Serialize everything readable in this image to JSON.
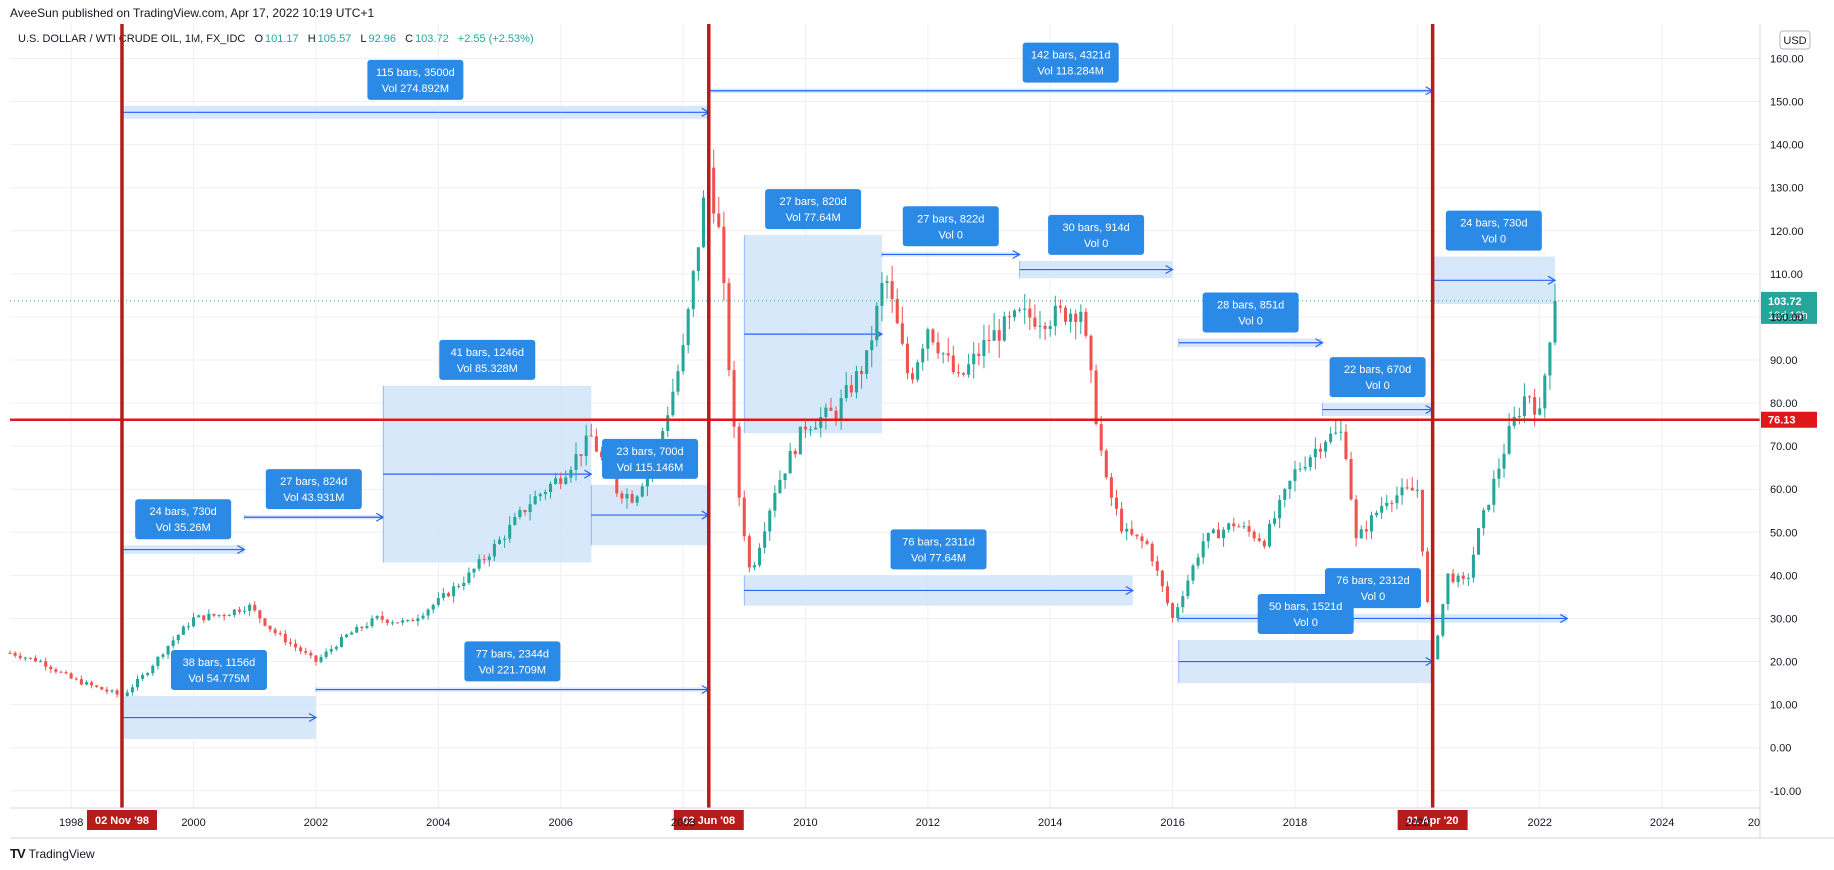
{
  "header": {
    "publisher": "AveeSun published on TradingView.com, Apr 17, 2022 10:19 UTC+1"
  },
  "symbol": {
    "name": "U.S. DOLLAR / WTI CRUDE OIL, 1M, FX_IDC",
    "open_label": "O",
    "open": "101.17",
    "high_label": "H",
    "high": "105.57",
    "low_label": "L",
    "low": "92.96",
    "close_label": "C",
    "close": "103.72",
    "change": "+2.55 (+2.53%)"
  },
  "footer": {
    "logo_mark": "TV",
    "logo_text": "TradingView"
  },
  "colors": {
    "up": "#26a69a",
    "down": "#ef5350",
    "measure_blue": "#2962ff",
    "measure_fill": "#cfe4f9",
    "label_blue": "#2b8ae6",
    "red_line": "#e0161b",
    "dark_red": "#b71c1c",
    "grid": "#eef0f3",
    "price_tag": "#26a69a"
  },
  "chart_data": {
    "type": "candlestick",
    "x_axis": {
      "range": [
        1997.0,
        2025.6
      ],
      "ticks": [
        "1998",
        "2000",
        "2002",
        "2004",
        "2006",
        "2008",
        "2010",
        "2012",
        "2014",
        "2016",
        "2018",
        "2020",
        "2022",
        "2024",
        "20"
      ]
    },
    "y_axis": {
      "range": [
        -14,
        168
      ],
      "ticks": [
        "160.00",
        "150.00",
        "140.00",
        "130.00",
        "120.00",
        "110.00",
        "100.00",
        "90.00",
        "80.00",
        "70.00",
        "60.00",
        "50.00",
        "40.00",
        "30.00",
        "20.00",
        "10.00",
        "0.00",
        "-10.00"
      ],
      "tick_values": [
        160,
        150,
        140,
        130,
        120,
        110,
        100,
        90,
        80,
        70,
        60,
        50,
        40,
        30,
        20,
        10,
        0,
        -10
      ]
    },
    "currency_label": "USD",
    "last_price": {
      "value": 103.72,
      "label": "103.72",
      "countdown": "12d 13h"
    },
    "horizontal_line": {
      "value": 76.13,
      "label": "76.13"
    },
    "vertical_lines": [
      {
        "x": 1998.83,
        "label": "02 Nov '98"
      },
      {
        "x": 2008.42,
        "label": "02 Jun '08"
      },
      {
        "x": 2020.25,
        "label": "01 Apr '20"
      }
    ],
    "price_path": [
      [
        1997.0,
        22
      ],
      [
        1997.5,
        20
      ],
      [
        1998.0,
        16
      ],
      [
        1998.4,
        14
      ],
      [
        1998.83,
        12
      ],
      [
        1999.2,
        17
      ],
      [
        1999.6,
        24
      ],
      [
        2000.0,
        30
      ],
      [
        2000.5,
        31
      ],
      [
        2000.9,
        33
      ],
      [
        2001.3,
        27
      ],
      [
        2001.8,
        22
      ],
      [
        2002.0,
        20
      ],
      [
        2002.5,
        26
      ],
      [
        2003.0,
        30
      ],
      [
        2003.5,
        29
      ],
      [
        2004.0,
        34
      ],
      [
        2004.5,
        40
      ],
      [
        2005.0,
        48
      ],
      [
        2005.5,
        57
      ],
      [
        2006.0,
        63
      ],
      [
        2006.5,
        72
      ],
      [
        2006.9,
        60
      ],
      [
        2007.2,
        58
      ],
      [
        2007.6,
        70
      ],
      [
        2008.0,
        92
      ],
      [
        2008.42,
        135
      ],
      [
        2008.6,
        118
      ],
      [
        2008.9,
        60
      ],
      [
        2009.1,
        40
      ],
      [
        2009.5,
        60
      ],
      [
        2010.0,
        75
      ],
      [
        2010.5,
        78
      ],
      [
        2011.0,
        90
      ],
      [
        2011.3,
        110
      ],
      [
        2011.7,
        85
      ],
      [
        2012.0,
        98
      ],
      [
        2012.5,
        85
      ],
      [
        2013.0,
        95
      ],
      [
        2013.5,
        100
      ],
      [
        2014.0,
        100
      ],
      [
        2014.5,
        102
      ],
      [
        2014.9,
        62
      ],
      [
        2015.2,
        50
      ],
      [
        2015.6,
        47
      ],
      [
        2016.0,
        30
      ],
      [
        2016.5,
        48
      ],
      [
        2017.0,
        52
      ],
      [
        2017.5,
        48
      ],
      [
        2018.0,
        64
      ],
      [
        2018.5,
        72
      ],
      [
        2018.8,
        73
      ],
      [
        2019.0,
        48
      ],
      [
        2019.5,
        58
      ],
      [
        2020.0,
        60
      ],
      [
        2020.25,
        20
      ],
      [
        2020.5,
        40
      ],
      [
        2020.8,
        38
      ],
      [
        2021.0,
        50
      ],
      [
        2021.5,
        73
      ],
      [
        2021.8,
        83
      ],
      [
        2022.0,
        77
      ],
      [
        2022.2,
        100
      ],
      [
        2022.3,
        103.72
      ]
    ]
  },
  "measurements": [
    {
      "x1": 1998.83,
      "x2": 2008.42,
      "y1": 146,
      "y2": 149,
      "bars": "115 bars, 3500d",
      "vol": "Vol 274.892M"
    },
    {
      "x1": 2008.42,
      "x2": 2020.25,
      "y1": 152,
      "y2": 153,
      "bars": "142 bars, 4321d",
      "vol": "Vol 118.284M"
    },
    {
      "x1": 1998.83,
      "x2": 2000.83,
      "y1": 45,
      "y2": 47,
      "bars": "24 bars, 730d",
      "vol": "Vol 35.26M"
    },
    {
      "x1": 1998.83,
      "x2": 2002.0,
      "y1": 2,
      "y2": 12,
      "bars": "38 bars, 1156d",
      "vol": "Vol 54.775M"
    },
    {
      "x1": 2000.83,
      "x2": 2003.1,
      "y1": 53,
      "y2": 54,
      "bars": "27 bars, 824d",
      "vol": "Vol 43.931M"
    },
    {
      "x1": 2002.0,
      "x2": 2008.42,
      "y1": 13,
      "y2": 14,
      "bars": "77 bars, 2344d",
      "vol": "Vol 221.709M"
    },
    {
      "x1": 2003.1,
      "x2": 2006.5,
      "y1": 43,
      "y2": 84,
      "bars": "41 bars, 1246d",
      "vol": "Vol 85.328M"
    },
    {
      "x1": 2006.5,
      "x2": 2008.42,
      "y1": 47,
      "y2": 61,
      "bars": "23 bars, 700d",
      "vol": "Vol 115.146M"
    },
    {
      "x1": 2009.0,
      "x2": 2011.25,
      "y1": 73,
      "y2": 119,
      "bars": "27 bars, 820d",
      "vol": "Vol 77.64M"
    },
    {
      "x1": 2009.0,
      "x2": 2015.35,
      "y1": 33,
      "y2": 40,
      "bars": "76 bars, 2311d",
      "vol": "Vol 77.64M"
    },
    {
      "x1": 2011.25,
      "x2": 2013.5,
      "y1": 114,
      "y2": 115,
      "bars": "27 bars, 822d",
      "vol": "Vol 0"
    },
    {
      "x1": 2013.5,
      "x2": 2016.0,
      "y1": 109,
      "y2": 113,
      "bars": "30 bars, 914d",
      "vol": "Vol 0"
    },
    {
      "x1": 2016.1,
      "x2": 2018.45,
      "y1": 93,
      "y2": 95,
      "bars": "28 bars, 851d",
      "vol": "Vol 0"
    },
    {
      "x1": 2018.45,
      "x2": 2020.25,
      "y1": 77,
      "y2": 80,
      "bars": "22 bars, 670d",
      "vol": "Vol 0"
    },
    {
      "x1": 2016.1,
      "x2": 2022.45,
      "y1": 29,
      "y2": 31,
      "bars": "76 bars, 2312d",
      "vol": "Vol 0"
    },
    {
      "x1": 2016.1,
      "x2": 2020.25,
      "y1": 15,
      "y2": 25,
      "bars": "50 bars, 1521d",
      "vol": "Vol 0"
    },
    {
      "x1": 2020.25,
      "x2": 2022.25,
      "y1": 103,
      "y2": 114,
      "bars": "24 bars, 730d",
      "vol": "Vol 0"
    }
  ]
}
